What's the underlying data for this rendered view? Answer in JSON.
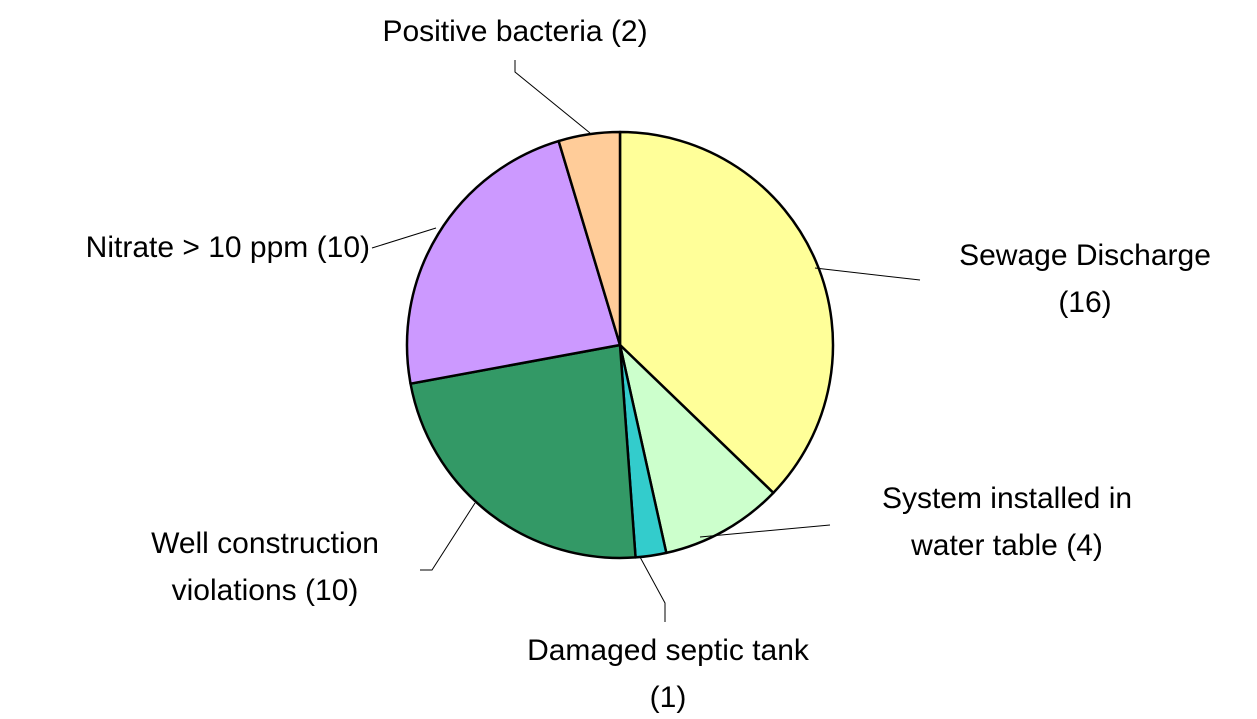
{
  "chart_data": {
    "type": "pie",
    "categories": [
      "Sewage Discharge",
      "System installed in water table",
      "Damaged septic tank",
      "Well construction violations",
      "Nitrate > 10 ppm",
      "Positive bacteria"
    ],
    "values": [
      16,
      4,
      1,
      10,
      10,
      2
    ],
    "value_labels": [
      "(16)",
      "(4)",
      "(1)",
      "(10)",
      "(10)",
      "(2)"
    ],
    "colors": [
      "#ffff99",
      "#ccffcc",
      "#33cccc",
      "#339966",
      "#cc99ff",
      "#ffcc99"
    ]
  }
}
